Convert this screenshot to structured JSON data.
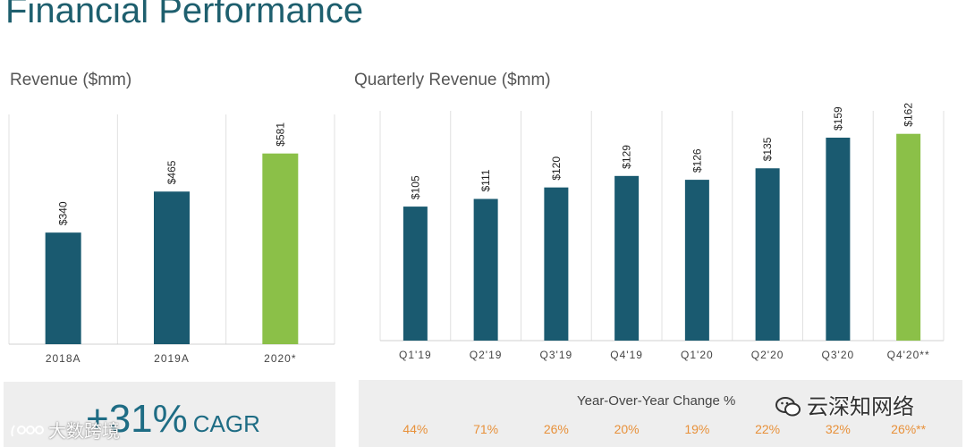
{
  "page": {
    "title": "Financial Performance"
  },
  "chart_data": [
    {
      "type": "bar",
      "title": "Revenue ($mm)",
      "categories": [
        "2018A",
        "2019A",
        "2020*"
      ],
      "values": [
        340,
        465,
        581
      ],
      "value_labels": [
        "$340",
        "$465",
        "$581"
      ],
      "ylim": [
        0,
        700
      ],
      "colors": [
        "#1a5a70",
        "#1a5a70",
        "#8bc048"
      ],
      "grid": false
    },
    {
      "type": "bar",
      "title": "Quarterly Revenue ($mm)",
      "categories": [
        "Q1'19",
        "Q2'19",
        "Q3'19",
        "Q4'19",
        "Q1'20",
        "Q2'20",
        "Q3'20",
        "Q4'20**"
      ],
      "values": [
        105,
        111,
        120,
        129,
        126,
        135,
        159,
        162
      ],
      "value_labels": [
        "$105",
        "$111",
        "$120",
        "$129",
        "$126",
        "$135",
        "$159",
        "$162"
      ],
      "ylim": [
        0,
        180
      ],
      "colors": [
        "#1a5a70",
        "#1a5a70",
        "#1a5a70",
        "#1a5a70",
        "#1a5a70",
        "#1a5a70",
        "#1a5a70",
        "#8bc048"
      ],
      "grid": false,
      "yoy_title": "Year-Over-Year Change %",
      "yoy_values": [
        "44%",
        "71%",
        "26%",
        "20%",
        "19%",
        "22%",
        "32%",
        "26%**"
      ]
    }
  ],
  "cagr": {
    "value": "+31%",
    "label": "CAGR"
  },
  "watermarks": {
    "top_right": "云深知网络",
    "bottom_left": "大数跨境"
  },
  "colors": {
    "teal": "#1a5a70",
    "green": "#8bc048",
    "orange": "#e8913a",
    "title": "#1e5f6e"
  }
}
